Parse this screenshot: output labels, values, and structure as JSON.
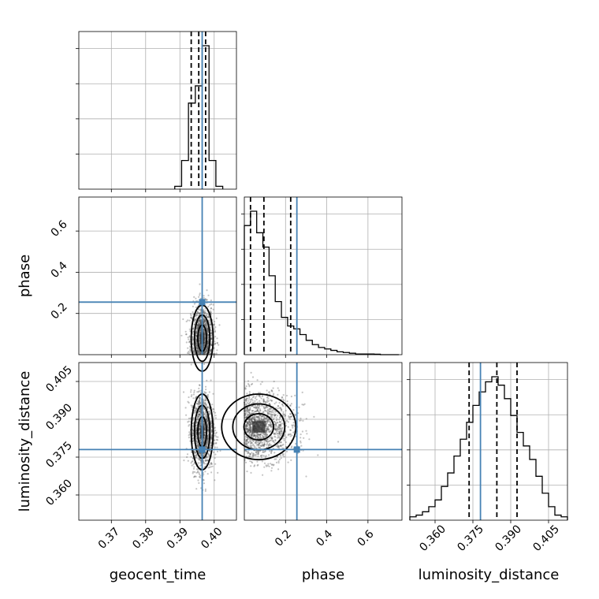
{
  "chart_data": {
    "type": "corner",
    "parameters": [
      "geocent_time",
      "phase",
      "luminosity_distance"
    ],
    "truth_color": "#4682b4",
    "truths": {
      "geocent_time": 0.3965,
      "phase": 0.255,
      "luminosity_distance": 0.378
    },
    "ranges": {
      "geocent_time": [
        0.3605,
        0.4065
      ],
      "phase": [
        0.0,
        0.765
      ],
      "luminosity_distance": [
        0.35,
        0.4125
      ]
    },
    "ticks": {
      "geocent_time": {
        "values": [
          0.37,
          0.38,
          0.39,
          0.4
        ],
        "labels": [
          "0.37",
          "0.38",
          "0.39",
          "0.40"
        ]
      },
      "phase": {
        "values": [
          0.2,
          0.4,
          0.6
        ],
        "labels": [
          "0.2",
          "0.4",
          "0.6"
        ]
      },
      "luminosity_distance": {
        "values": [
          0.36,
          0.375,
          0.39,
          0.405
        ],
        "labels": [
          "0.360",
          "0.375",
          "0.390",
          "0.405"
        ]
      }
    },
    "histograms": {
      "geocent_time": {
        "edges": [
          0.3885,
          0.3905,
          0.3925,
          0.3945,
          0.3965,
          0.3985,
          0.4005,
          0.4025
        ],
        "counts": [
          2,
          20,
          60,
          72,
          100,
          20,
          2
        ],
        "quantiles": [
          0.3933,
          0.3955,
          0.3975
        ]
      },
      "phase": {
        "edges": [
          0.0,
          0.03,
          0.06,
          0.09,
          0.12,
          0.15,
          0.18,
          0.21,
          0.24,
          0.27,
          0.3,
          0.33,
          0.36,
          0.39,
          0.42,
          0.45,
          0.48,
          0.51,
          0.54,
          0.57,
          0.6,
          0.63,
          0.66,
          0.69,
          0.72,
          0.75
        ],
        "counts": [
          90,
          100,
          85,
          75,
          55,
          37,
          26,
          20,
          18,
          14,
          10,
          7,
          5,
          4,
          3,
          2,
          1.5,
          1,
          0.5,
          0.5,
          0.5,
          0.3,
          0,
          0,
          0
        ],
        "quantiles": [
          0.03,
          0.095,
          0.225
        ]
      },
      "luminosity_distance": {
        "edges": [
          0.35,
          0.3525,
          0.355,
          0.3575,
          0.36,
          0.3625,
          0.365,
          0.3675,
          0.37,
          0.3725,
          0.375,
          0.3775,
          0.38,
          0.3825,
          0.385,
          0.3875,
          0.39,
          0.3925,
          0.395,
          0.3975,
          0.4,
          0.4025,
          0.405,
          0.4075,
          0.41,
          0.4125
        ],
        "counts": [
          2,
          3,
          5,
          8,
          12,
          20,
          28,
          38,
          48,
          58,
          68,
          76,
          82,
          85,
          80,
          72,
          62,
          52,
          44,
          36,
          26,
          16,
          8,
          3,
          2
        ],
        "quantiles": [
          0.3735,
          0.3845,
          0.3925
        ]
      }
    },
    "pairs": [
      {
        "x": "geocent_time",
        "y": "phase"
      },
      {
        "x": "geocent_time",
        "y": "luminosity_distance"
      },
      {
        "x": "phase",
        "y": "luminosity_distance"
      }
    ]
  }
}
